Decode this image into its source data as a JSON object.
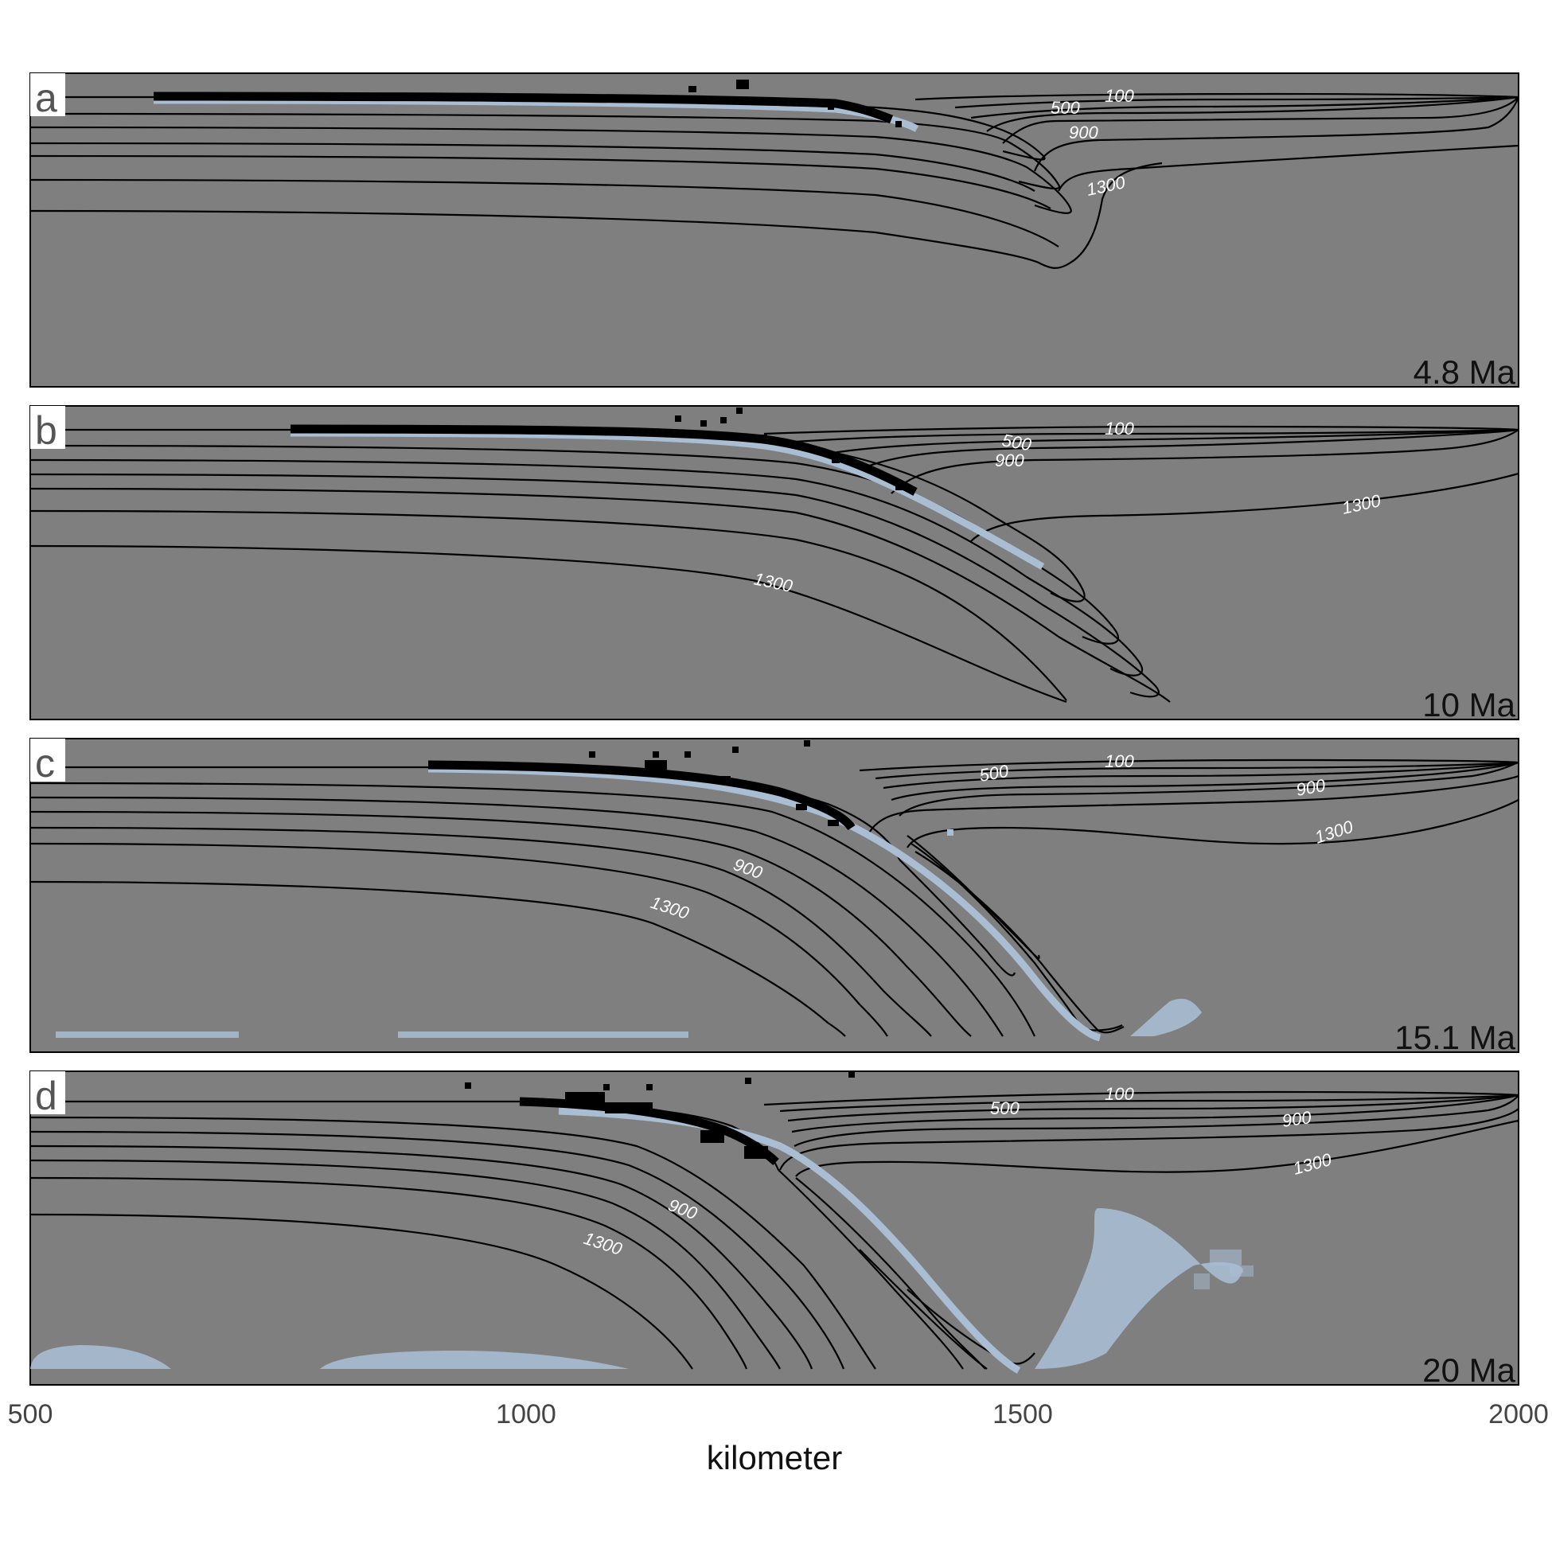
{
  "figure": {
    "x_axis": {
      "title": "kilometer",
      "min": 500,
      "max": 2000,
      "ticks": [
        "500",
        "1000",
        "1500",
        "2000"
      ]
    },
    "colors": {
      "background": "#7f7f7f",
      "slab": "#a9bdd3",
      "isotherm": "#000000",
      "isotherm_label": "#ffffff"
    },
    "panels": [
      {
        "letter": "a",
        "time": "4.8 Ma",
        "labels": [
          "100",
          "500",
          "900",
          "1300"
        ]
      },
      {
        "letter": "b",
        "time": "10 Ma",
        "labels": [
          "500",
          "100",
          "900",
          "1300",
          "1300"
        ]
      },
      {
        "letter": "c",
        "time": "15.1 Ma",
        "labels": [
          "500",
          "100",
          "900",
          "1300",
          "900",
          "1300"
        ]
      },
      {
        "letter": "d",
        "time": "20 Ma",
        "labels": [
          "500",
          "100",
          "900",
          "1300",
          "900",
          "1300"
        ]
      }
    ]
  }
}
